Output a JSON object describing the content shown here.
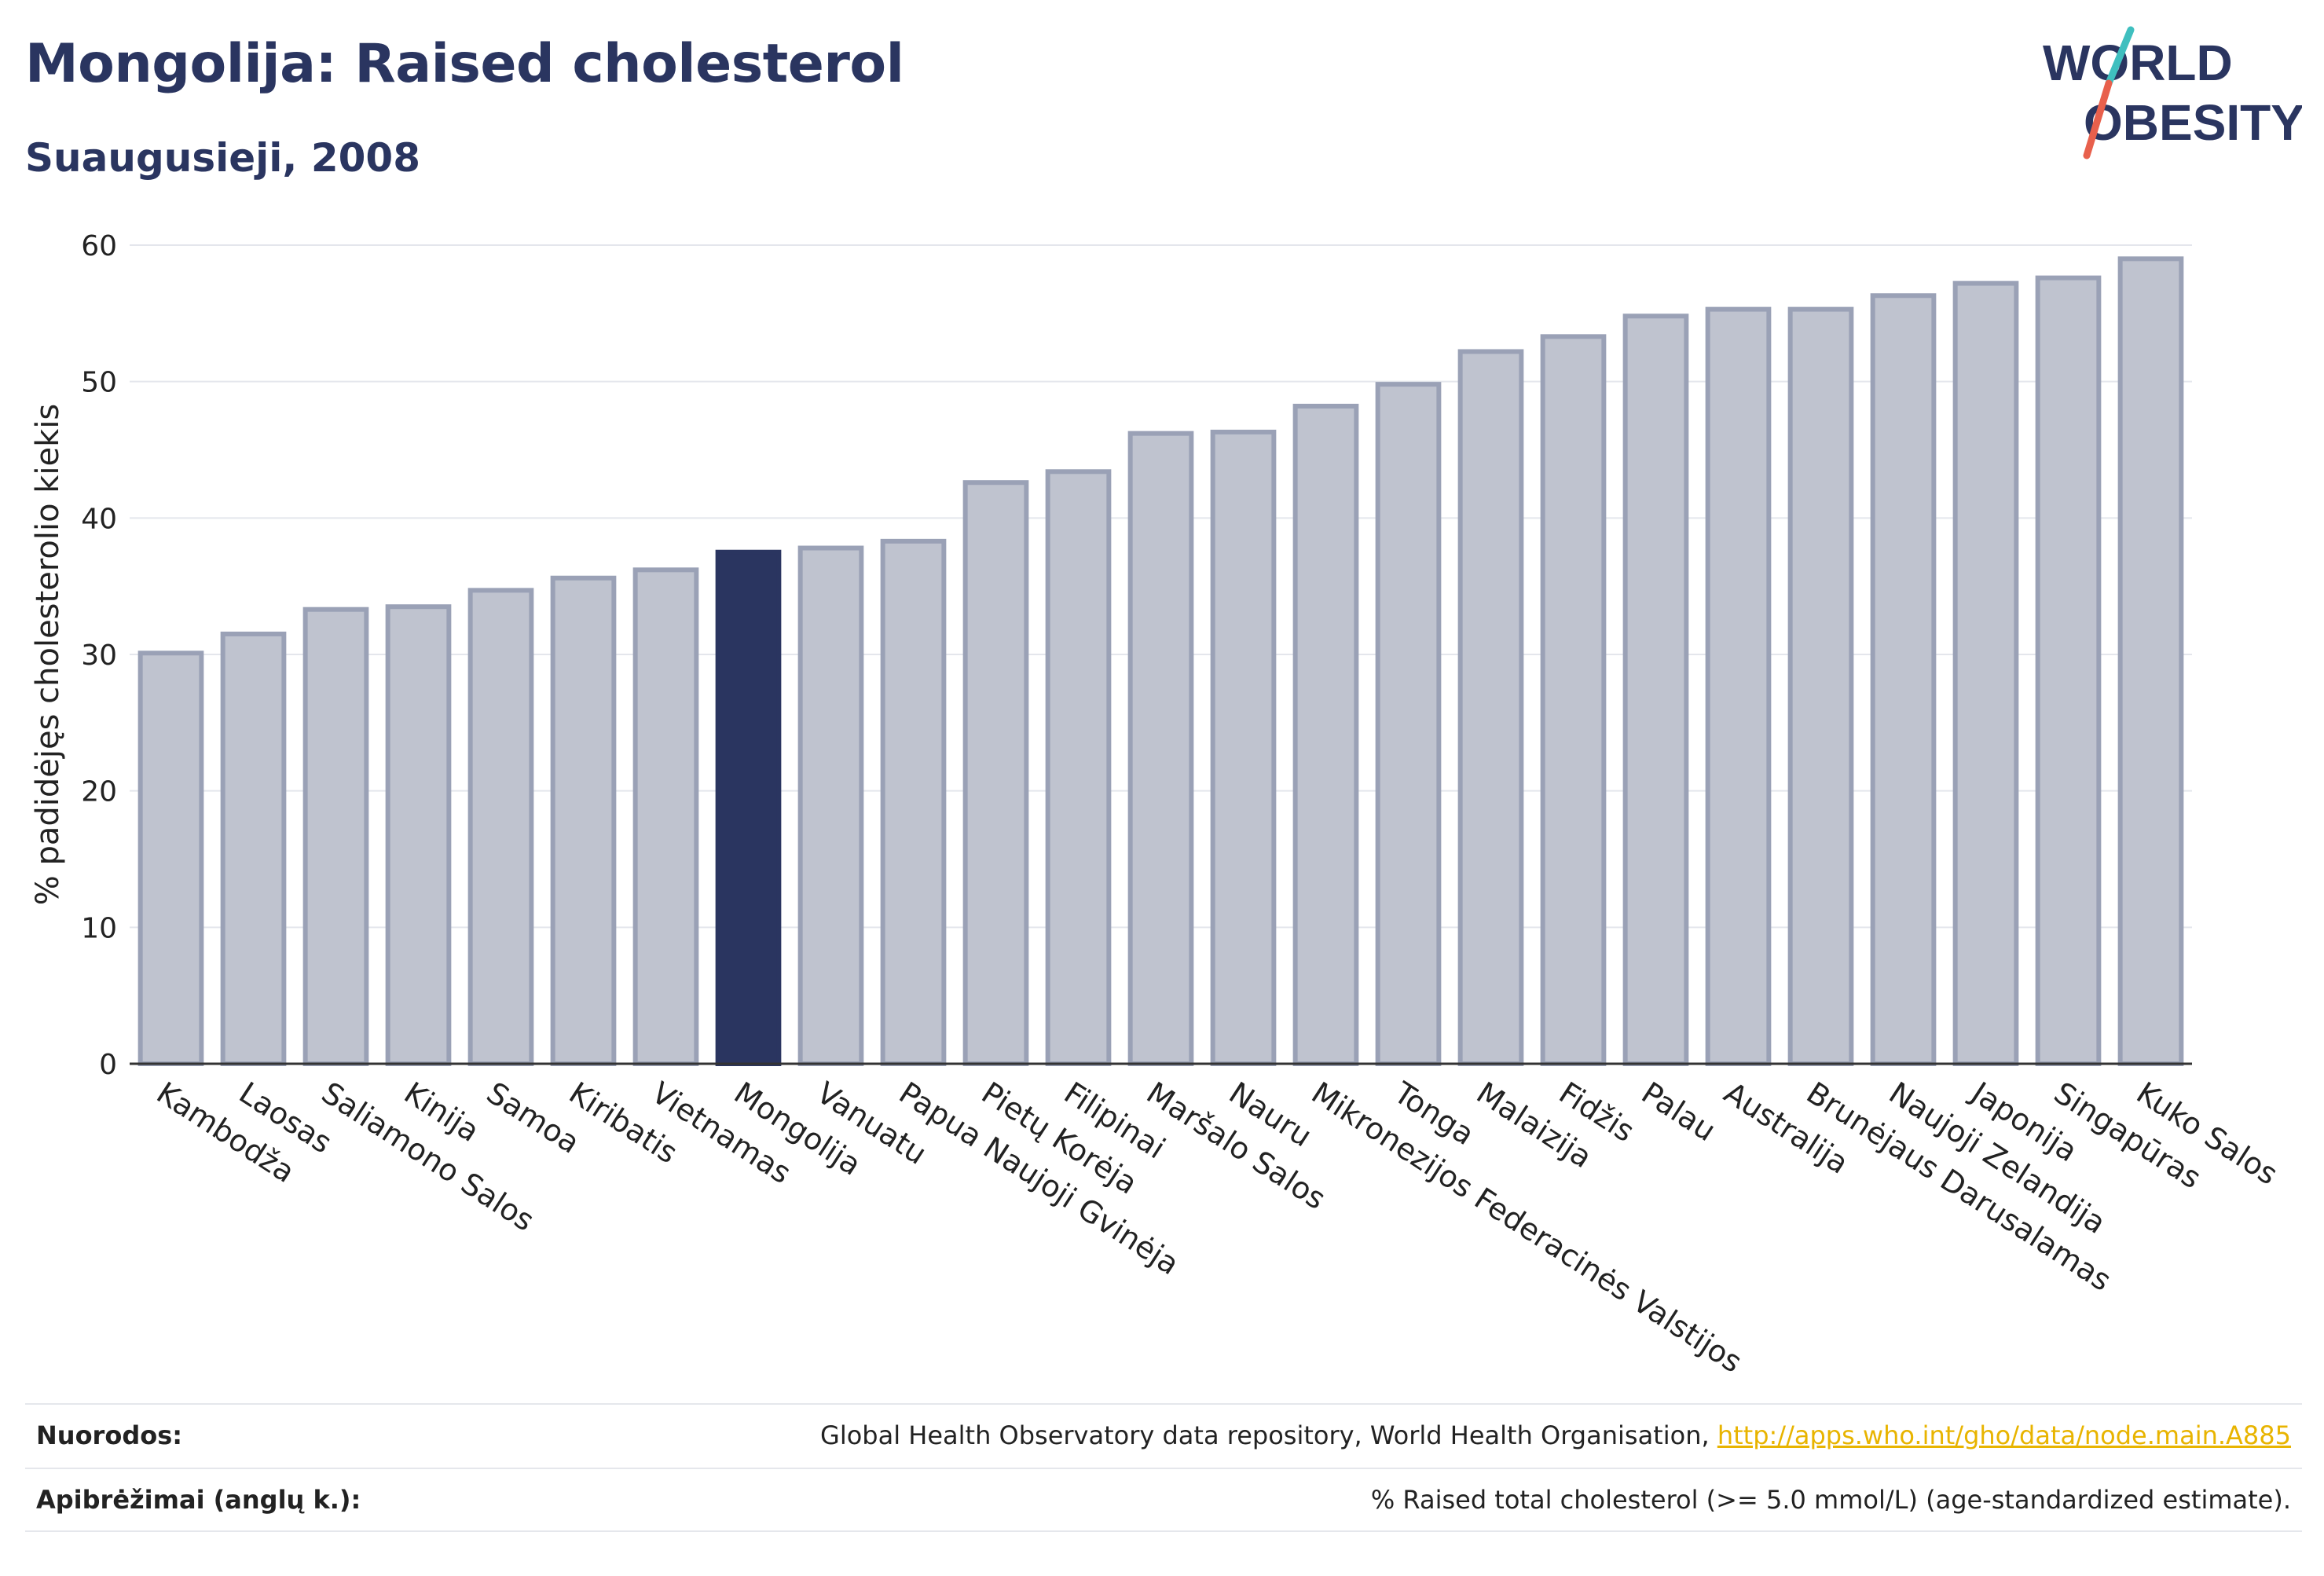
{
  "header": {
    "title": "Mongolija: Raised cholesterol",
    "subtitle": "Suaugusieji, 2008"
  },
  "logo": {
    "line1": "WORLD",
    "line2": "OBESITY"
  },
  "colors": {
    "text": "#2a3560",
    "bar": "#bfc3cf",
    "bar_border": "#9aa1b6",
    "highlight": "#2a3560",
    "gridline": "#e4e6ec",
    "link": "#e8b400",
    "logo_teal": "#3fbfbf",
    "logo_red": "#e8604c"
  },
  "chart_data": {
    "type": "bar",
    "title": "Mongolija: Raised cholesterol",
    "subtitle": "Suaugusieji, 2008",
    "ylabel": "% padidėjęs cholesterolio kiekis",
    "xlabel": "",
    "ylim": [
      0,
      60
    ],
    "yticks": [
      0,
      10,
      20,
      30,
      40,
      50,
      60
    ],
    "grid": true,
    "highlight": "Mongolija",
    "categories": [
      "Kambodža",
      "Laosas",
      "Saliamono Salos",
      "Kinija",
      "Samoa",
      "Kiribatis",
      "Vietnamas",
      "Mongolija",
      "Vanuatu",
      "Papua Naujoji Gvinėja",
      "Pietų Korėja",
      "Filipinai",
      "Maršalo Salos",
      "Nauru",
      "Mikronezijos Federacinės Valstijos",
      "Tonga",
      "Malaizija",
      "Fidžis",
      "Palau",
      "Australija",
      "Brunėjaus Darusalamas",
      "Naujoji Zelandija",
      "Japonija",
      "Singapūras",
      "Kuko Salos"
    ],
    "values": [
      30.1,
      31.5,
      33.3,
      33.5,
      34.7,
      35.6,
      36.2,
      37.5,
      37.8,
      38.3,
      42.6,
      43.4,
      46.2,
      46.3,
      48.2,
      49.8,
      52.2,
      53.3,
      54.8,
      55.3,
      55.3,
      56.3,
      57.2,
      57.6,
      59.0
    ]
  },
  "footer": {
    "sources_label": "Nuorodos:",
    "sources_text": "Global Health Observatory data repository, World Health Organisation, ",
    "sources_link": "http://apps.who.int/gho/data/node.main.A885",
    "definitions_label": "Apibrėžimai (anglų k.):",
    "definitions_text": "% Raised total cholesterol (>= 5.0 mmol/L) (age-standardized estimate)."
  }
}
